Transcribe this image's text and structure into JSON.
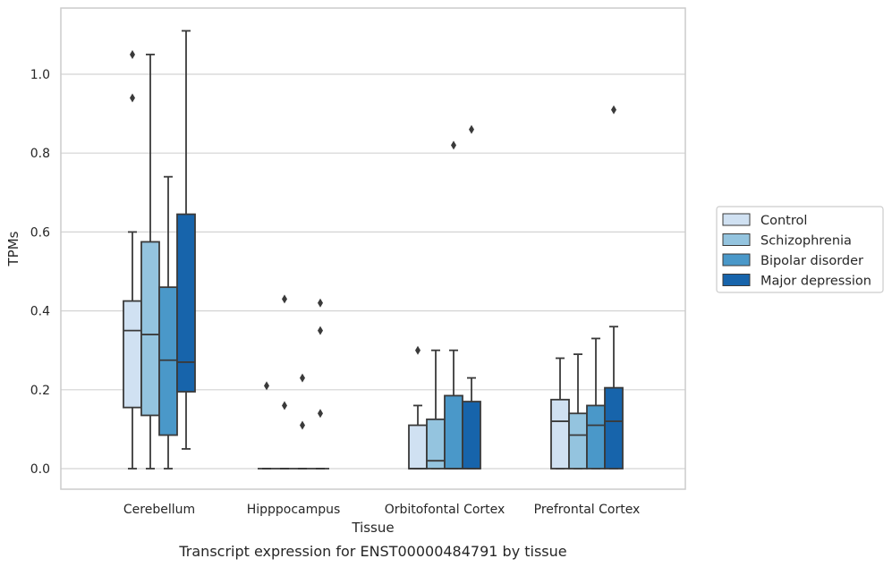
{
  "chart_data": {
    "type": "box",
    "title": "Transcript expression for ENST00000484791 by tissue",
    "xlabel": "Tissue",
    "ylabel": "TPMs",
    "ylim": [
      -0.055,
      1.175
    ],
    "yticks": [
      0.0,
      0.2,
      0.4,
      0.6,
      0.8,
      1.0
    ],
    "ytick_labels": [
      "0.0",
      "0.2",
      "0.4",
      "0.6",
      "0.8",
      "1.0"
    ],
    "grid": "horizontal",
    "legend_position": "right",
    "categories": [
      "Cerebellum",
      "Hipppocampus",
      "Orbitofontal Cortex",
      "Prefrontal Cortex"
    ],
    "series": [
      {
        "name": "Control",
        "color": "#d0e1f2",
        "boxes": [
          {
            "whisker_low": 0.0,
            "q1": 0.155,
            "median": 0.35,
            "q3": 0.425,
            "whisker_high": 0.6,
            "outliers": [
              0.94,
              1.05
            ]
          },
          {
            "whisker_low": 0.0,
            "q1": 0.0,
            "median": 0.0,
            "q3": 0.0,
            "whisker_high": 0.0,
            "outliers": [
              0.21
            ]
          },
          {
            "whisker_low": 0.0,
            "q1": 0.0,
            "median": 0.0,
            "q3": 0.11,
            "whisker_high": 0.16,
            "outliers": [
              0.3
            ]
          },
          {
            "whisker_low": 0.0,
            "q1": 0.0,
            "median": 0.12,
            "q3": 0.175,
            "whisker_high": 0.28,
            "outliers": []
          }
        ]
      },
      {
        "name": "Schizophrenia",
        "color": "#94c4df",
        "boxes": [
          {
            "whisker_low": 0.0,
            "q1": 0.135,
            "median": 0.34,
            "q3": 0.575,
            "whisker_high": 1.05,
            "outliers": []
          },
          {
            "whisker_low": 0.0,
            "q1": 0.0,
            "median": 0.0,
            "q3": 0.0,
            "whisker_high": 0.0,
            "outliers": [
              0.16,
              0.43
            ]
          },
          {
            "whisker_low": 0.0,
            "q1": 0.0,
            "median": 0.02,
            "q3": 0.125,
            "whisker_high": 0.3,
            "outliers": []
          },
          {
            "whisker_low": 0.0,
            "q1": 0.0,
            "median": 0.085,
            "q3": 0.14,
            "whisker_high": 0.29,
            "outliers": []
          }
        ]
      },
      {
        "name": "Bipolar disorder",
        "color": "#4a98c9",
        "boxes": [
          {
            "whisker_low": 0.0,
            "q1": 0.085,
            "median": 0.275,
            "q3": 0.46,
            "whisker_high": 0.74,
            "outliers": []
          },
          {
            "whisker_low": 0.0,
            "q1": 0.0,
            "median": 0.0,
            "q3": 0.0,
            "whisker_high": 0.0,
            "outliers": [
              0.11,
              0.23
            ]
          },
          {
            "whisker_low": 0.0,
            "q1": 0.0,
            "median": 0.0,
            "q3": 0.185,
            "whisker_high": 0.3,
            "outliers": [
              0.82
            ]
          },
          {
            "whisker_low": 0.0,
            "q1": 0.0,
            "median": 0.11,
            "q3": 0.16,
            "whisker_high": 0.33,
            "outliers": []
          }
        ]
      },
      {
        "name": "Major depression",
        "color": "#1764ab",
        "boxes": [
          {
            "whisker_low": 0.05,
            "q1": 0.195,
            "median": 0.27,
            "q3": 0.645,
            "whisker_high": 1.11,
            "outliers": []
          },
          {
            "whisker_low": 0.0,
            "q1": 0.0,
            "median": 0.0,
            "q3": 0.0,
            "whisker_high": 0.0,
            "outliers": [
              0.14,
              0.35,
              0.42
            ]
          },
          {
            "whisker_low": 0.0,
            "q1": 0.0,
            "median": 0.0,
            "q3": 0.17,
            "whisker_high": 0.23,
            "outliers": [
              0.86
            ]
          },
          {
            "whisker_low": 0.0,
            "q1": 0.0,
            "median": 0.12,
            "q3": 0.205,
            "whisker_high": 0.36,
            "outliers": [
              0.91
            ]
          }
        ]
      }
    ]
  }
}
